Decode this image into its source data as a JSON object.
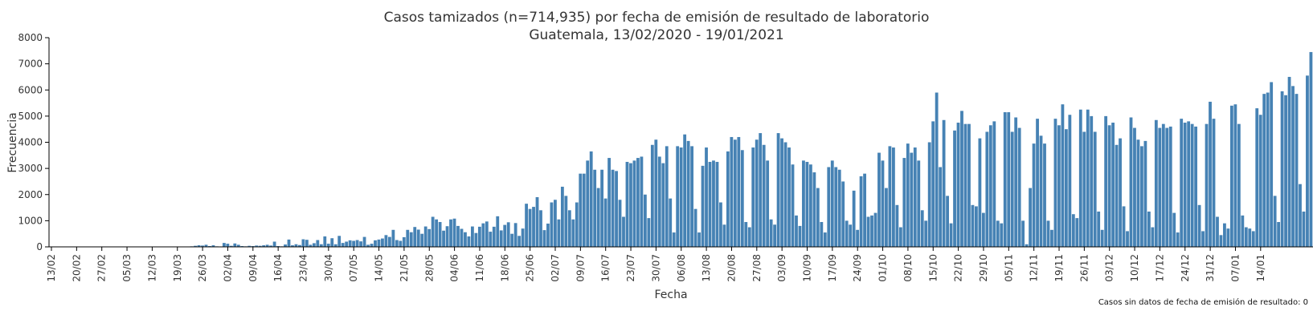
{
  "chart_data": {
    "type": "bar",
    "title": "Casos tamizados (n=714,935) por fecha de emisión de resultado de laboratorio",
    "subtitle": "Guatemala, 13/02/2020 - 19/01/2021",
    "xlabel": "Fecha",
    "ylabel": "Frecuencia",
    "footnote": "Casos sin datos de fecha de emisión de resultado: 0",
    "ylim": [
      0,
      8000
    ],
    "yticks": [
      0,
      1000,
      2000,
      3000,
      4000,
      5000,
      6000,
      7000,
      8000
    ],
    "x_start": "13/02/2020",
    "x_end": "19/01/2021",
    "xtick_labels": [
      "13/02",
      "20/02",
      "27/02",
      "05/03",
      "12/03",
      "19/03",
      "26/03",
      "02/04",
      "09/04",
      "16/04",
      "23/04",
      "30/04",
      "07/05",
      "14/05",
      "21/05",
      "28/05",
      "04/06",
      "11/06",
      "18/06",
      "25/06",
      "02/07",
      "09/07",
      "16/07",
      "23/07",
      "30/07",
      "06/08",
      "13/08",
      "20/08",
      "27/08",
      "03/09",
      "10/09",
      "17/09",
      "24/09",
      "01/10",
      "08/10",
      "15/10",
      "22/10",
      "29/10",
      "05/11",
      "12/11",
      "19/11",
      "26/11",
      "03/12",
      "10/12",
      "17/12",
      "24/12",
      "31/12",
      "07/01",
      "14/01"
    ],
    "bar_color": "#4682b4",
    "values": [
      0,
      0,
      0,
      0,
      0,
      0,
      0,
      0,
      0,
      0,
      0,
      0,
      0,
      0,
      0,
      0,
      0,
      0,
      0,
      0,
      0,
      0,
      0,
      0,
      0,
      0,
      0,
      0,
      0,
      0,
      0,
      0,
      0,
      0,
      0,
      0,
      0,
      0,
      10,
      20,
      40,
      60,
      50,
      80,
      30,
      60,
      20,
      10,
      150,
      120,
      40,
      130,
      80,
      30,
      20,
      40,
      30,
      50,
      40,
      60,
      80,
      50,
      200,
      30,
      20,
      90,
      280,
      60,
      100,
      70,
      290,
      270,
      80,
      140,
      260,
      100,
      400,
      120,
      330,
      100,
      420,
      150,
      200,
      250,
      230,
      260,
      210,
      380,
      80,
      120,
      250,
      280,
      320,
      450,
      380,
      650,
      260,
      230,
      370,
      650,
      560,
      760,
      660,
      500,
      780,
      680,
      1150,
      1050,
      950,
      620,
      790,
      1050,
      1080,
      800,
      690,
      560,
      400,
      780,
      530,
      770,
      900,
      970,
      580,
      770,
      1170,
      630,
      840,
      940,
      500,
      910,
      420,
      700,
      1650,
      1450,
      1530,
      1900,
      1400,
      640,
      890,
      1700,
      1800,
      1050,
      2300,
      1950,
      1400,
      1050,
      1700,
      2800,
      2800,
      3300,
      3650,
      2950,
      2250,
      2950,
      1850,
      3400,
      2950,
      2900,
      1800,
      1150,
      3250,
      3200,
      3300,
      3400,
      3450,
      2000,
      1100,
      3900,
      4100,
      3450,
      3200,
      3850,
      1850,
      550,
      3850,
      3800,
      4300,
      4050,
      3850,
      1450,
      550,
      3100,
      3800,
      3250,
      3300,
      3250,
      1700,
      850,
      3650,
      4200,
      4100,
      4200,
      3700,
      950,
      750,
      3800,
      4100,
      4350,
      3900,
      3300,
      1050,
      850,
      4350,
      4150,
      4000,
      3800,
      3150,
      1200,
      800,
      3300,
      3250,
      3150,
      2850,
      2250,
      950,
      550,
      3050,
      3300,
      3050,
      2950,
      2500,
      1000,
      850,
      2150,
      650,
      2700,
      2800,
      1150,
      1200,
      1300,
      3600,
      3300,
      2250,
      3850,
      3800,
      1600,
      750,
      3400,
      3950,
      3600,
      3800,
      3300,
      1400,
      1000,
      4000,
      4800,
      5900,
      3050,
      4850,
      1950,
      900,
      4450,
      4750,
      5200,
      4700,
      4700,
      1600,
      1550,
      4150,
      1300,
      4400,
      4650,
      4800,
      1000,
      900,
      5150,
      5150,
      4400,
      4950,
      4550,
      1000,
      100,
      2250,
      3950,
      4900,
      4250,
      3950,
      1000,
      650,
      4900,
      4650,
      5450,
      4500,
      5050,
      1250,
      1100,
      5250,
      4400,
      5250,
      5000,
      4400,
      1350,
      650,
      5000,
      4650,
      4750,
      3900,
      4150,
      1550,
      600,
      4950,
      4550,
      4100,
      3850,
      4050,
      1350,
      750,
      4850,
      4550,
      4700,
      4550,
      4600,
      1300,
      550,
      4900,
      4750,
      4800,
      4700,
      4600,
      1600,
      600,
      4700,
      5550,
      4900,
      1150,
      450,
      900,
      700,
      5400,
      5450,
      4700,
      1200,
      750,
      700,
      600,
      5300,
      5050,
      5850,
      5900,
      6300,
      1950,
      950,
      5950,
      5800,
      6500,
      6150,
      5850,
      2400,
      1350,
      6550,
      7450
    ]
  }
}
